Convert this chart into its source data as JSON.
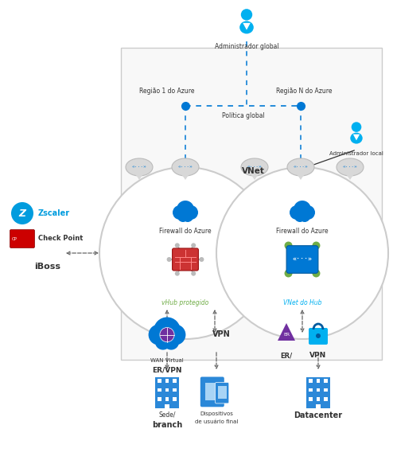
{
  "bg_color": "#ffffff",
  "box_color": "#f8f8f8",
  "box_border": "#cccccc",
  "blue": "#0078d4",
  "cyan": "#00b0f0",
  "green": "#70ad47",
  "gray": "#aaaaaa",
  "dark": "#333333",
  "arrow_gray": "#666666",
  "purple": "#7030a0",
  "zscaler_blue": "#009cde",
  "red_fw": "#cc3333",
  "labels": {
    "global_admin": "Administrador global",
    "region1": "Região 1 do Azure",
    "regionN": "Região N do Azure",
    "global_policy": "Política global",
    "local_admin": "Administrador local",
    "vnet_label": "VNet",
    "firewall1": "Firewall do Azure",
    "firewall2": "Firewall do Azure",
    "vhub": "vHub protegido",
    "vnet_hub": "VNet do Hub",
    "wan_virtual": "WAN Virtual",
    "er_vpn1": "ER/VPN",
    "vpn": "VPN",
    "er_label": "ER/",
    "vpn2": "VPN",
    "sede": "Sede/",
    "branch": "branch",
    "devices1": "Dispositivos",
    "devices2": "de usuário final",
    "datacenter": "Datacenter",
    "zscaler": "Zscaler",
    "checkpoint": "Check Point",
    "iboss": "iBoss"
  }
}
